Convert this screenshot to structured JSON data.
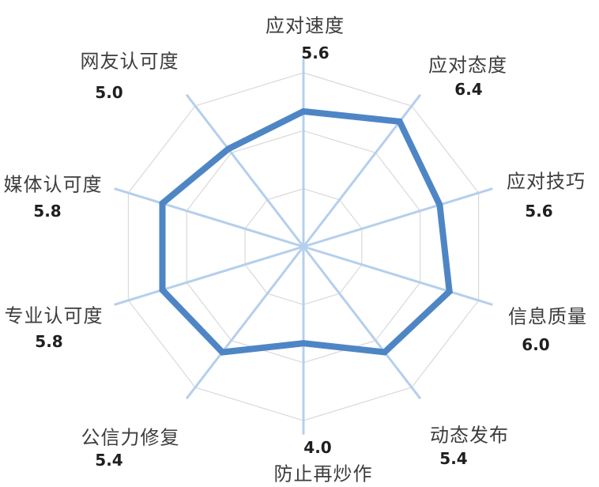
{
  "chart_data": {
    "type": "radar",
    "categories": [
      "应对速度",
      "应对态度",
      "应对技巧",
      "信息质量",
      "动态发布",
      "防止再炒作",
      "公信力修复",
      "专业认可度",
      "媒体认可度",
      "网友认可度"
    ],
    "values": [
      5.6,
      6.4,
      5.6,
      6.0,
      5.4,
      4.0,
      5.4,
      5.8,
      5.8,
      5.0
    ],
    "value_labels": [
      "5.6",
      "6.4",
      "5.6",
      "6.0",
      "5.4",
      "4.0",
      "5.4",
      "5.8",
      "5.8",
      "5.0"
    ],
    "axis": {
      "min": 0,
      "max": 7.2,
      "gridline_levels": 3,
      "tick_labels_visible": false,
      "start_angle_deg": 0,
      "direction": "clockwise"
    },
    "legend": "none",
    "grid": "on",
    "fill": "none",
    "colors": {
      "series_line": "#4e86c5",
      "spoke_line": "#b5cfec",
      "gridline": "#d9d9d9",
      "category_label": "#3d3d3d",
      "value_label": "#1f1f1f",
      "background": "#ffffff"
    }
  }
}
